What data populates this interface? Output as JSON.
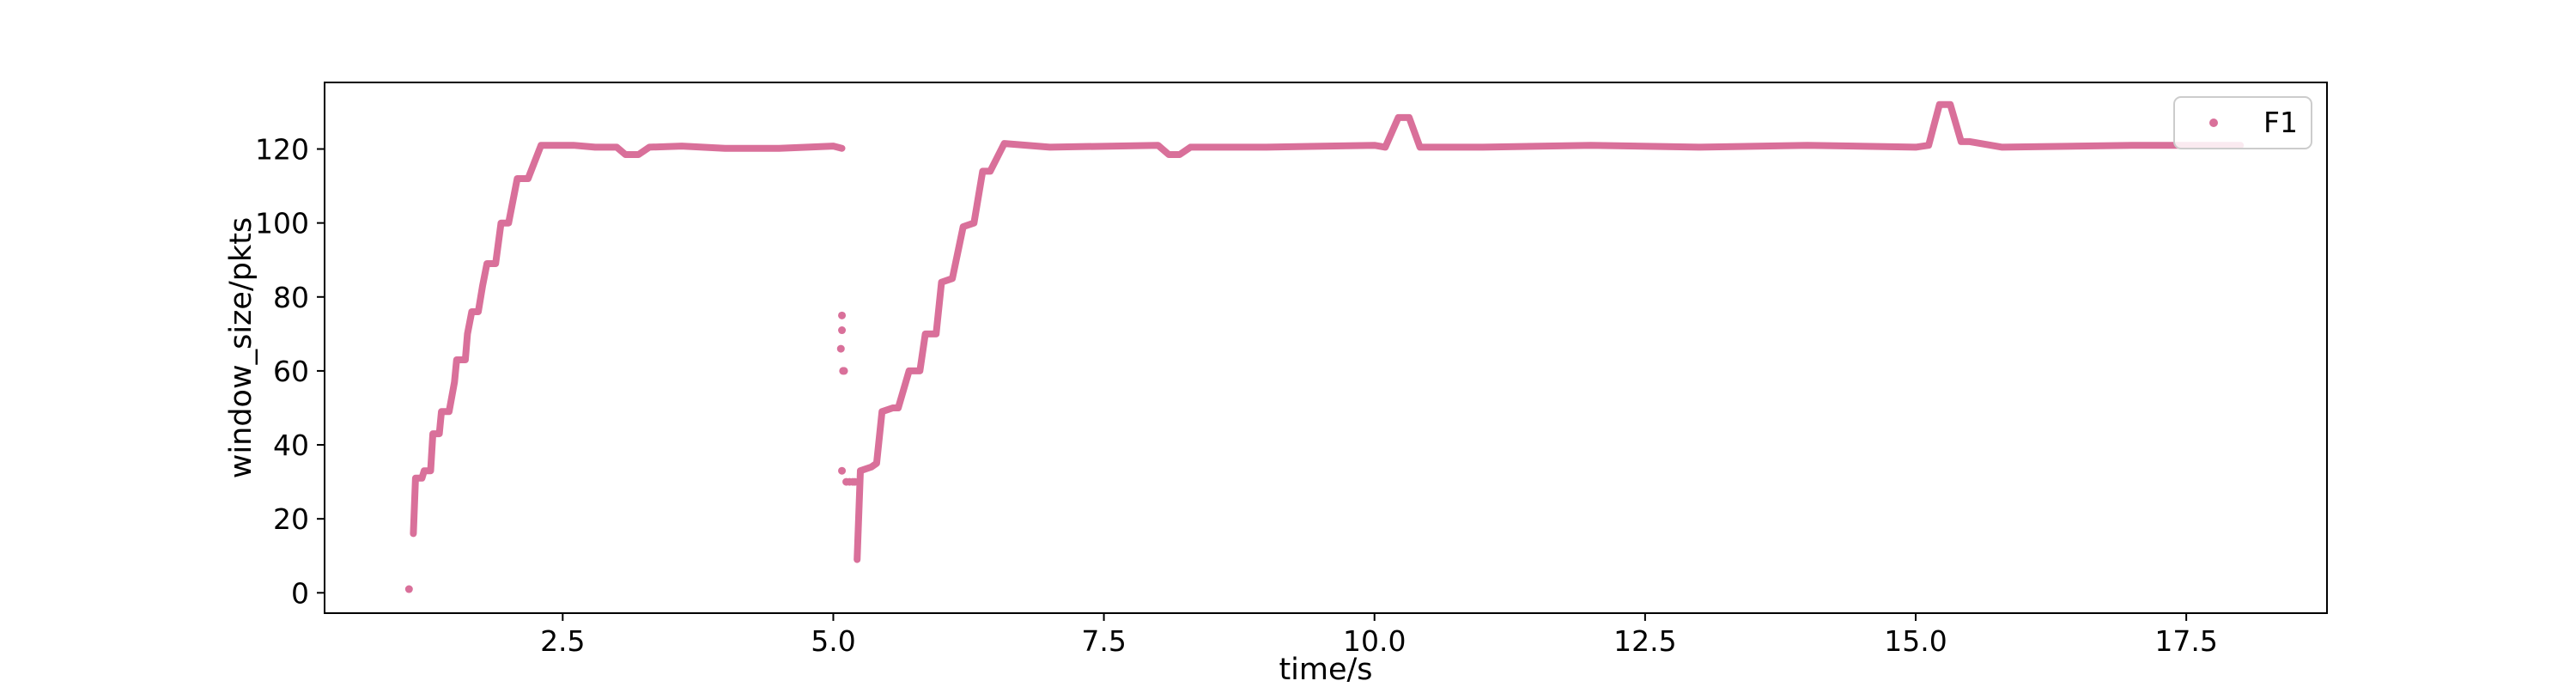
{
  "chart_data": {
    "type": "scatter",
    "xlabel": "time/s",
    "ylabel": "window_size/pkts",
    "xlim": [
      0.3,
      18.8
    ],
    "ylim": [
      -5.5,
      138
    ],
    "xticks": [
      2.5,
      5.0,
      7.5,
      10.0,
      12.5,
      15.0,
      17.5
    ],
    "xtick_labels": [
      "2.5",
      "5.0",
      "7.5",
      "10.0",
      "12.5",
      "15.0",
      "17.5"
    ],
    "yticks": [
      0,
      20,
      40,
      60,
      80,
      100,
      120
    ],
    "ytick_labels": [
      "0",
      "20",
      "40",
      "60",
      "80",
      "100",
      "120"
    ],
    "grid": false,
    "legend_position": "top-right",
    "series": [
      {
        "name": "F1",
        "color": "#d9709a",
        "segments": [
          [
            [
              1.12,
              16
            ],
            [
              1.14,
              31
            ],
            [
              1.2,
              31
            ],
            [
              1.22,
              33
            ],
            [
              1.28,
              33
            ],
            [
              1.3,
              43
            ],
            [
              1.36,
              43
            ],
            [
              1.38,
              49
            ],
            [
              1.45,
              49
            ],
            [
              1.5,
              57
            ],
            [
              1.52,
              63
            ],
            [
              1.6,
              63
            ],
            [
              1.62,
              70
            ],
            [
              1.66,
              76
            ],
            [
              1.72,
              76
            ],
            [
              1.76,
              83
            ],
            [
              1.8,
              89
            ],
            [
              1.88,
              89
            ],
            [
              1.93,
              100
            ],
            [
              2.0,
              100
            ],
            [
              2.08,
              112
            ],
            [
              2.18,
              112
            ],
            [
              2.3,
              121
            ],
            [
              2.6,
              121
            ],
            [
              2.8,
              120.5
            ],
            [
              3.0,
              120.5
            ],
            [
              3.08,
              118.5
            ],
            [
              3.2,
              118.5
            ],
            [
              3.3,
              120.5
            ],
            [
              3.6,
              120.8
            ],
            [
              4.0,
              120.2
            ],
            [
              4.5,
              120.2
            ],
            [
              5.0,
              120.8
            ],
            [
              5.08,
              120.2
            ]
          ],
          [
            [
              5.22,
              9
            ],
            [
              5.25,
              33
            ],
            [
              5.35,
              34
            ],
            [
              5.4,
              35
            ],
            [
              5.45,
              49
            ],
            [
              5.55,
              50
            ],
            [
              5.6,
              50
            ],
            [
              5.7,
              60
            ],
            [
              5.8,
              60
            ],
            [
              5.85,
              70
            ],
            [
              5.95,
              70
            ],
            [
              6.0,
              84
            ],
            [
              6.1,
              85
            ],
            [
              6.2,
              99
            ],
            [
              6.3,
              100
            ],
            [
              6.38,
              114
            ],
            [
              6.45,
              114
            ],
            [
              6.58,
              121.5
            ],
            [
              7.0,
              120.5
            ],
            [
              8.0,
              121
            ],
            [
              8.1,
              118.5
            ],
            [
              8.2,
              118.5
            ],
            [
              8.3,
              120.5
            ],
            [
              9.0,
              120.5
            ],
            [
              10.0,
              121
            ],
            [
              10.1,
              120.5
            ],
            [
              10.22,
              128.5
            ],
            [
              10.32,
              128.5
            ],
            [
              10.42,
              120.5
            ],
            [
              11.0,
              120.5
            ],
            [
              12.0,
              121
            ],
            [
              13.0,
              120.5
            ],
            [
              14.0,
              121
            ],
            [
              15.0,
              120.5
            ],
            [
              15.12,
              121
            ],
            [
              15.22,
              132
            ],
            [
              15.32,
              132
            ],
            [
              15.42,
              122
            ],
            [
              15.5,
              122
            ],
            [
              15.8,
              120.5
            ],
            [
              17.0,
              121
            ],
            [
              18.0,
              121
            ]
          ]
        ],
        "isolated_points": [
          [
            1.08,
            1
          ],
          [
            5.12,
            30
          ],
          [
            5.15,
            30
          ],
          [
            5.18,
            30
          ],
          [
            5.2,
            30
          ],
          [
            5.08,
            33
          ],
          [
            5.09,
            60
          ],
          [
            5.1,
            60
          ],
          [
            5.07,
            66
          ],
          [
            5.08,
            71
          ],
          [
            5.08,
            75
          ]
        ]
      }
    ]
  }
}
